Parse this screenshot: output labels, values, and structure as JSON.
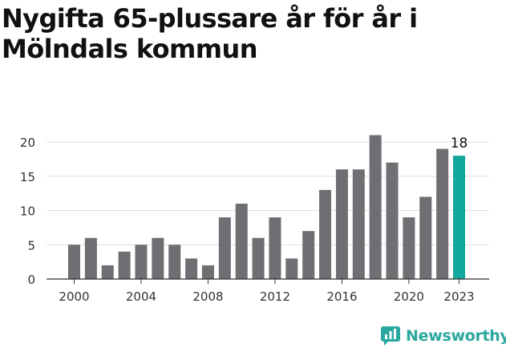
{
  "title": "Nygifta 65-plussare år för år i Mölndals kommun",
  "brand": {
    "name": "Newsworthy",
    "logo_icon": "newsworthy-logo-icon"
  },
  "colors": {
    "bar": "#6e6e73",
    "highlight": "#13a89e",
    "grid": "#dedede",
    "axis": "#333333",
    "text": "#333333",
    "brand": "#2ba89e"
  },
  "chart_data": {
    "type": "bar",
    "title": "Nygifta 65-plussare år för år i Mölndals kommun",
    "xlabel": "",
    "ylabel": "",
    "categories": [
      "2000",
      "2001",
      "2002",
      "2003",
      "2004",
      "2005",
      "2006",
      "2007",
      "2008",
      "2009",
      "2010",
      "2011",
      "2012",
      "2013",
      "2014",
      "2015",
      "2016",
      "2017",
      "2018",
      "2019",
      "2020",
      "2021",
      "2022",
      "2023"
    ],
    "values": [
      5,
      6,
      2,
      4,
      5,
      6,
      5,
      3,
      2,
      9,
      11,
      6,
      9,
      3,
      7,
      13,
      16,
      16,
      21,
      17,
      9,
      12,
      19,
      18
    ],
    "ylim": [
      0,
      22
    ],
    "yticks": [
      "0",
      "5",
      "10",
      "15",
      "20"
    ],
    "xticks": [
      "2000",
      "2004",
      "2008",
      "2012",
      "2016",
      "2020",
      "2023"
    ],
    "highlight_category": "2023",
    "data_labels": [
      {
        "category": "2023",
        "text": "18"
      }
    ],
    "grid": "horizontal"
  }
}
